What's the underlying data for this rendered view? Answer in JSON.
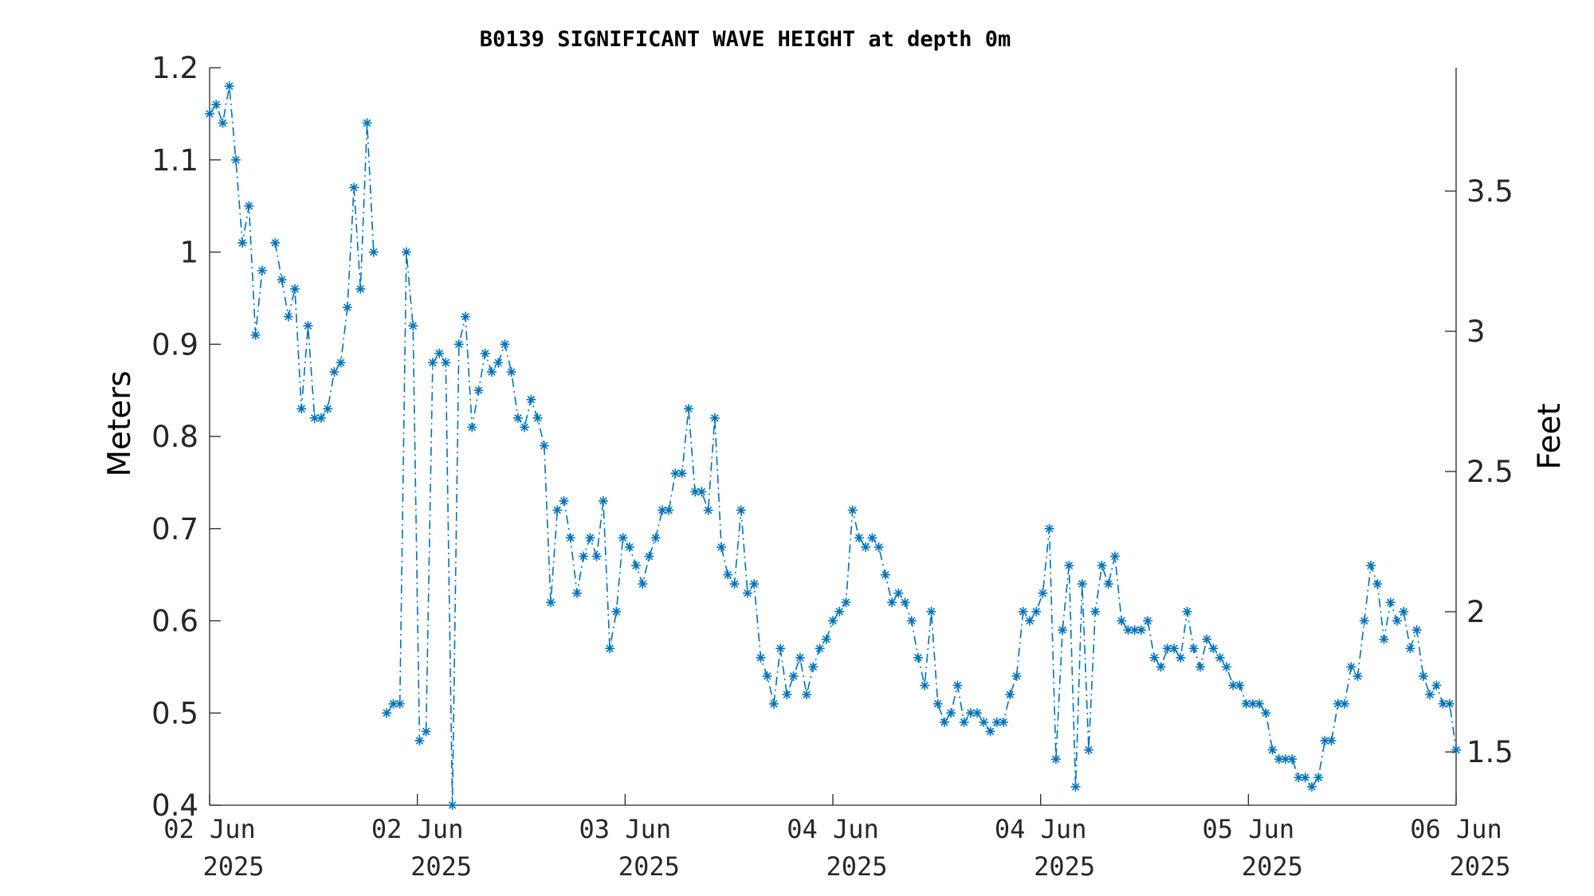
{
  "chart_data": {
    "type": "line",
    "title": "B0139 SIGNIFICANT WAVE HEIGHT at depth 0m",
    "ylabel": "Meters",
    "ylabel_right": "Feet",
    "ylim": [
      0.4,
      1.2
    ],
    "ylim_right_feet": [
      1.31,
      3.94
    ],
    "yticks": [
      "0.4",
      "0.5",
      "0.6",
      "0.7",
      "0.8",
      "0.9",
      "1",
      "1.1",
      "1.2"
    ],
    "yticks_right": [
      "1.5",
      "2",
      "2.5",
      "3",
      "3.5"
    ],
    "xticks": [
      {
        "line1": "02 Jun",
        "line2": "2025"
      },
      {
        "line1": "02 Jun",
        "line2": "2025"
      },
      {
        "line1": "03 Jun",
        "line2": "2025"
      },
      {
        "line1": "04 Jun",
        "line2": "2025"
      },
      {
        "line1": "04 Jun",
        "line2": "2025"
      },
      {
        "line1": "05 Jun",
        "line2": "2025"
      },
      {
        "line1": "06 Jun",
        "line2": "2025"
      }
    ],
    "xlim": [
      "2025-06-02 00:00",
      "2025-06-06 00:00"
    ],
    "grid": false,
    "series": [
      {
        "color": "#0072BD",
        "marker": "asterisk",
        "line_style": "dash-dot",
        "values": [
          1.15,
          1.16,
          1.14,
          1.18,
          1.1,
          1.01,
          1.05,
          0.91,
          0.98,
          null,
          1.01,
          0.97,
          0.93,
          0.96,
          0.83,
          0.92,
          0.82,
          0.82,
          0.83,
          0.87,
          0.88,
          0.94,
          1.07,
          0.96,
          1.14,
          1.0,
          null,
          0.5,
          0.51,
          0.51,
          1.0,
          0.92,
          0.47,
          0.48,
          0.88,
          0.89,
          0.88,
          0.4,
          0.9,
          0.93,
          0.81,
          0.85,
          0.89,
          0.87,
          0.88,
          0.9,
          0.87,
          0.82,
          0.81,
          0.84,
          0.82,
          0.79,
          0.62,
          0.72,
          0.73,
          0.69,
          0.63,
          0.67,
          0.69,
          0.67,
          0.73,
          0.57,
          0.61,
          0.69,
          0.68,
          0.66,
          0.64,
          0.67,
          0.69,
          0.72,
          0.72,
          0.76,
          0.76,
          0.83,
          0.74,
          0.74,
          0.72,
          0.82,
          0.68,
          0.65,
          0.64,
          0.72,
          0.63,
          0.64,
          0.56,
          0.54,
          0.51,
          0.57,
          0.52,
          0.54,
          0.56,
          0.52,
          0.55,
          0.57,
          0.58,
          0.6,
          0.61,
          0.62,
          0.72,
          0.69,
          0.68,
          0.69,
          0.68,
          0.65,
          0.62,
          0.63,
          0.62,
          0.6,
          0.56,
          0.53,
          0.61,
          0.51,
          0.49,
          0.5,
          0.53,
          0.49,
          0.5,
          0.5,
          0.49,
          0.48,
          0.49,
          0.49,
          0.52,
          0.54,
          0.61,
          0.6,
          0.61,
          0.63,
          0.7,
          0.45,
          0.59,
          0.66,
          0.42,
          0.64,
          0.46,
          0.61,
          0.66,
          0.64,
          0.67,
          0.6,
          0.59,
          0.59,
          0.59,
          0.6,
          0.56,
          0.55,
          0.57,
          0.57,
          0.56,
          0.61,
          0.57,
          0.55,
          0.58,
          0.57,
          0.56,
          0.55,
          0.53,
          0.53,
          0.51,
          0.51,
          0.51,
          0.5,
          0.46,
          0.45,
          0.45,
          0.45,
          0.43,
          0.43,
          0.42,
          0.43,
          0.47,
          0.47,
          0.51,
          0.51,
          0.55,
          0.54,
          0.6,
          0.66,
          0.64,
          0.58,
          0.62,
          0.6,
          0.61,
          0.57,
          0.59,
          0.54,
          0.52,
          0.53,
          0.51,
          0.51,
          0.46
        ]
      }
    ]
  }
}
